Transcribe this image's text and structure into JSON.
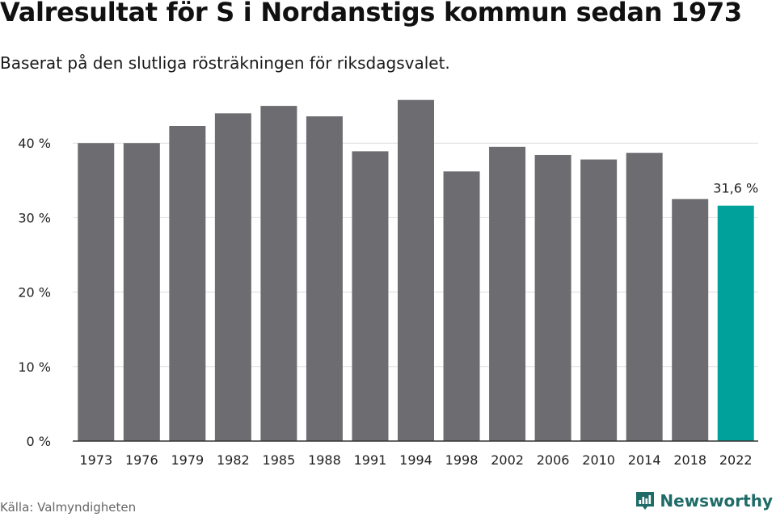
{
  "title": "Valresultat för S i Nordanstigs kommun sedan 1973",
  "subtitle": "Baserat på den slutliga rösträkningen för riksdagsvalet.",
  "source": "Källa: Valmyndigheten",
  "brand": {
    "name": "Newsworthy",
    "icon": "newsworthy-logo-icon",
    "color": "#1e6b67"
  },
  "colors": {
    "bar": "#6d6c71",
    "highlight": "#00a19a",
    "grid": "#dddddd",
    "axis": "#333333"
  },
  "chart_data": {
    "type": "bar",
    "title": "Valresultat för S i Nordanstigs kommun sedan 1973",
    "subtitle": "Baserat på den slutliga rösträkningen för riksdagsvalet.",
    "xlabel": "",
    "ylabel": "",
    "categories": [
      "1973",
      "1976",
      "1979",
      "1982",
      "1985",
      "1988",
      "1991",
      "1994",
      "1998",
      "2002",
      "2006",
      "2010",
      "2014",
      "2018",
      "2022"
    ],
    "values": [
      40.0,
      40.0,
      42.3,
      44.0,
      45.0,
      43.6,
      38.9,
      45.8,
      36.2,
      39.5,
      38.4,
      37.8,
      38.7,
      32.5,
      31.6
    ],
    "highlight_index": 14,
    "annotations": [
      {
        "category": "2022",
        "text": "31,6 %"
      }
    ],
    "ylim": [
      0,
      47
    ],
    "yticks": [
      0,
      10,
      20,
      30,
      40
    ],
    "ytick_labels": [
      "0 %",
      "10 %",
      "20 %",
      "30 %",
      "40 %"
    ],
    "grid": true,
    "legend": "none"
  }
}
